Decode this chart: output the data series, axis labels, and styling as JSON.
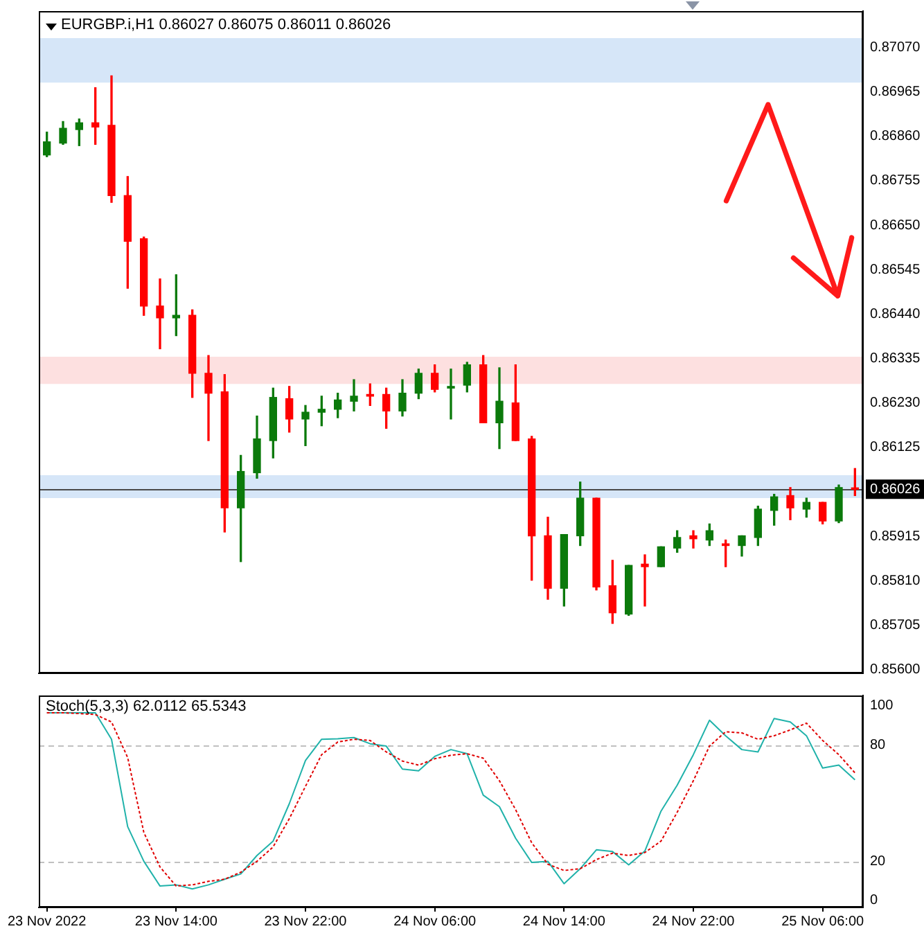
{
  "chart_data": [
    {
      "type": "candlestick",
      "title": "EURGBP.i,H1  0.86027 0.86075 0.86011 0.86026",
      "categories": [
        null,
        null,
        null,
        null,
        null,
        null,
        null,
        null,
        null,
        null,
        null,
        null,
        null,
        null,
        null,
        null,
        null,
        null,
        null,
        null,
        null,
        null,
        null,
        null,
        null,
        null,
        null,
        null,
        null,
        null,
        null,
        null,
        null,
        null,
        null,
        null,
        null,
        null,
        null,
        null,
        null,
        null,
        null,
        null,
        null,
        null,
        null,
        null,
        null,
        null,
        null
      ],
      "ohlc": [
        [
          0.86816,
          0.8687,
          0.86812,
          0.86847
        ],
        [
          0.86844,
          0.86895,
          0.86841,
          0.86879
        ],
        [
          0.86876,
          0.86901,
          0.86838,
          0.86892
        ],
        [
          0.86892,
          0.86975,
          0.86841,
          0.86882
        ],
        [
          0.86886,
          0.87003,
          0.86704,
          0.8672
        ],
        [
          0.8672,
          0.86765,
          0.86501,
          0.86612
        ],
        [
          0.86618,
          0.86622,
          0.86437,
          0.86459
        ],
        [
          0.86459,
          0.86523,
          0.86358,
          0.86431
        ],
        [
          0.86431,
          0.86533,
          0.86389,
          0.86437
        ],
        [
          0.86437,
          0.8645,
          0.86243,
          0.863
        ],
        [
          0.863,
          0.86342,
          0.86141,
          0.86253
        ],
        [
          0.86256,
          0.86297,
          0.85925,
          0.85982
        ],
        [
          0.85982,
          0.86106,
          0.85855,
          0.86068
        ],
        [
          0.86065,
          0.86199,
          0.86052,
          0.86145
        ],
        [
          0.86141,
          0.86265,
          0.861,
          0.86243
        ],
        [
          0.8624,
          0.86269,
          0.86161,
          0.86192
        ],
        [
          0.86192,
          0.86224,
          0.86129,
          0.86208
        ],
        [
          0.86208,
          0.86246,
          0.86176,
          0.86215
        ],
        [
          0.86215,
          0.86253,
          0.86195,
          0.86237
        ],
        [
          0.86234,
          0.86285,
          0.86211,
          0.86246
        ],
        [
          0.8625,
          0.86275,
          0.86224,
          0.86246
        ],
        [
          0.8625,
          0.86265,
          0.8617,
          0.86211
        ],
        [
          0.86211,
          0.86285,
          0.86199,
          0.86253
        ],
        [
          0.86253,
          0.8631,
          0.8624,
          0.863
        ],
        [
          0.863,
          0.8632,
          0.86256,
          0.86262
        ],
        [
          0.86265,
          0.8631,
          0.86192,
          0.86269
        ],
        [
          0.86272,
          0.86326,
          0.86256,
          0.8632
        ],
        [
          0.8632,
          0.86342,
          0.86183,
          0.86183
        ],
        [
          0.86183,
          0.86313,
          0.86122,
          0.86234
        ],
        [
          0.8623,
          0.8632,
          0.86141,
          0.86141
        ],
        [
          0.86145,
          0.86151,
          0.85811,
          0.85916
        ],
        [
          0.85916,
          0.8596,
          0.85766,
          0.85792
        ],
        [
          0.85792,
          0.85919,
          0.8575,
          0.85919
        ],
        [
          0.85916,
          0.86043,
          0.85893,
          0.86005
        ],
        [
          0.86005,
          0.86005,
          0.85788,
          0.85795
        ],
        [
          0.85798,
          0.85858,
          0.85709,
          0.85734
        ],
        [
          0.85731,
          0.85846,
          0.85728,
          0.85846
        ],
        [
          0.85849,
          0.85871,
          0.8575,
          0.85843
        ],
        [
          0.85843,
          0.8589,
          0.85843,
          0.8589
        ],
        [
          0.85887,
          0.85928,
          0.85877,
          0.85912
        ],
        [
          0.85916,
          0.85928,
          0.85887,
          0.85909
        ],
        [
          0.85906,
          0.85944,
          0.85893,
          0.85928
        ],
        [
          0.85897,
          0.85906,
          0.85843,
          0.85893
        ],
        [
          0.85893,
          0.85916,
          0.85868,
          0.85916
        ],
        [
          0.85912,
          0.85986,
          0.85893,
          0.85979
        ],
        [
          0.85976,
          0.86014,
          0.85941,
          0.86008
        ],
        [
          0.86011,
          0.8603,
          0.85954,
          0.85982
        ],
        [
          0.85979,
          0.86005,
          0.8596,
          0.85995
        ],
        [
          0.85995,
          0.85995,
          0.85944,
          0.85951
        ],
        [
          0.85951,
          0.86036,
          0.85947,
          0.8603
        ],
        [
          0.86027,
          0.86075,
          0.86011,
          0.86026
        ]
      ],
      "colors": [
        "#0b7a0b",
        "#0b7a0b",
        "#0b7a0b",
        "#ff0000",
        "#ff0000",
        "#ff0000",
        "#ff0000",
        "#ff0000",
        "#0b7a0b",
        "#ff0000",
        "#ff0000",
        "#ff0000",
        "#0b7a0b",
        "#0b7a0b",
        "#0b7a0b",
        "#ff0000",
        "#0b7a0b",
        "#0b7a0b",
        "#0b7a0b",
        "#0b7a0b",
        "#ff0000",
        "#ff0000",
        "#0b7a0b",
        "#0b7a0b",
        "#ff0000",
        "#0b7a0b",
        "#0b7a0b",
        "#ff0000",
        "#0b7a0b",
        "#ff0000",
        "#ff0000",
        "#ff0000",
        "#0b7a0b",
        "#0b7a0b",
        "#ff0000",
        "#ff0000",
        "#0b7a0b",
        "#ff0000",
        "#0b7a0b",
        "#0b7a0b",
        "#ff0000",
        "#0b7a0b",
        "#ff0000",
        "#0b7a0b",
        "#0b7a0b",
        "#0b7a0b",
        "#ff0000",
        "#0b7a0b",
        "#ff0000",
        "#0b7a0b",
        "#ff0000"
      ],
      "ylim": [
        0.85591,
        0.87156
      ],
      "yticks": [
        {
          "value": 0.8707,
          "label": "0.87070"
        },
        0.86965,
        {
          "value": 0.8686,
          "label": "0.86860"
        },
        0.86755,
        {
          "value": 0.8665,
          "label": "0.86650"
        },
        0.86545,
        {
          "value": 0.8644,
          "label": "0.86440"
        },
        0.86335,
        {
          "value": 0.8623,
          "label": "0.86230"
        },
        0.86125,
        0.85915,
        {
          "value": 0.8581,
          "label": "0.85810"
        },
        0.85705,
        {
          "value": 0.856,
          "label": "0.85600"
        }
      ],
      "ref_lines": [
        {
          "axis": "y",
          "value": 0.86026,
          "label": "0.86026",
          "color": "#4a4a4a"
        }
      ],
      "bands": [
        {
          "axis": "y",
          "from": 0.86987,
          "to": 0.87092,
          "color": "#d6e6f8"
        },
        {
          "axis": "y",
          "from": 0.86275,
          "to": 0.86339,
          "color": "#fde0e0"
        },
        {
          "axis": "y",
          "from": 0.86005,
          "to": 0.86059,
          "color": "#d6e6f8"
        }
      ],
      "tick_labels": "y"
    },
    {
      "type": "line",
      "title": "Stoch(5,3,3) 62.0112 65.5343",
      "categories": [
        "23 Nov 2022",
        null,
        null,
        null,
        null,
        null,
        null,
        null,
        "23 Nov 14:00",
        null,
        null,
        null,
        null,
        null,
        null,
        null,
        "23 Nov 22:00",
        null,
        null,
        null,
        null,
        null,
        null,
        null,
        "24 Nov 06:00",
        null,
        null,
        null,
        null,
        null,
        null,
        null,
        "24 Nov 14:00",
        null,
        null,
        null,
        null,
        null,
        null,
        null,
        "24 Nov 22:00",
        null,
        null,
        null,
        null,
        null,
        null,
        null,
        "25 Nov 06:00",
        null,
        null
      ],
      "series": [
        {
          "color": "#20b2aa",
          "line_style": "solid",
          "values": [
            96.4,
            96.4,
            96.4,
            96.4,
            82.8,
            37.9,
            20.1,
            7.4,
            8.0,
            5.9,
            8.0,
            10.9,
            13.6,
            23.1,
            30.5,
            49.7,
            71.9,
            82.8,
            83.1,
            83.7,
            80.5,
            79.3,
            67.5,
            66.6,
            74.0,
            77.5,
            75.4,
            54.1,
            48.2,
            32.0,
            19.5,
            20.1,
            8.6,
            16.3,
            26.0,
            25.1,
            18.3,
            25.4,
            45.9,
            59.2,
            74.9,
            92.6,
            84.6,
            77.5,
            76.3,
            93.5,
            91.7,
            84.6,
            68.0,
            69.5,
            62.0112
          ]
        },
        {
          "color": "#e00000",
          "line_style": "dashed",
          "values": [
            96.4,
            96.4,
            96.0,
            95.5,
            91.7,
            73.4,
            34.9,
            17.2,
            7.4,
            8.0,
            9.8,
            10.9,
            14.5,
            20.1,
            27.5,
            42.0,
            58.6,
            74.9,
            81.4,
            82.8,
            82.2,
            76.3,
            71.6,
            69.5,
            72.8,
            74.6,
            75.4,
            73.1,
            61.5,
            46.7,
            29.6,
            18.6,
            15.4,
            16.3,
            21.0,
            24.3,
            23.1,
            24.6,
            30.5,
            45.3,
            61.5,
            79.3,
            86.7,
            86.1,
            82.8,
            84.6,
            87.6,
            91.1,
            82.2,
            74.9,
            65.5343
          ]
        }
      ],
      "ylim": [
        -3.6,
        105.3
      ],
      "yticks": [
        0,
        20,
        80,
        100
      ],
      "ref_lines": [
        {
          "axis": "y",
          "value": 20,
          "color": "#c0c0c0",
          "line_style": "dashed"
        },
        {
          "axis": "y",
          "value": 80,
          "color": "#c0c0c0",
          "line_style": "dashed"
        }
      ]
    }
  ]
}
